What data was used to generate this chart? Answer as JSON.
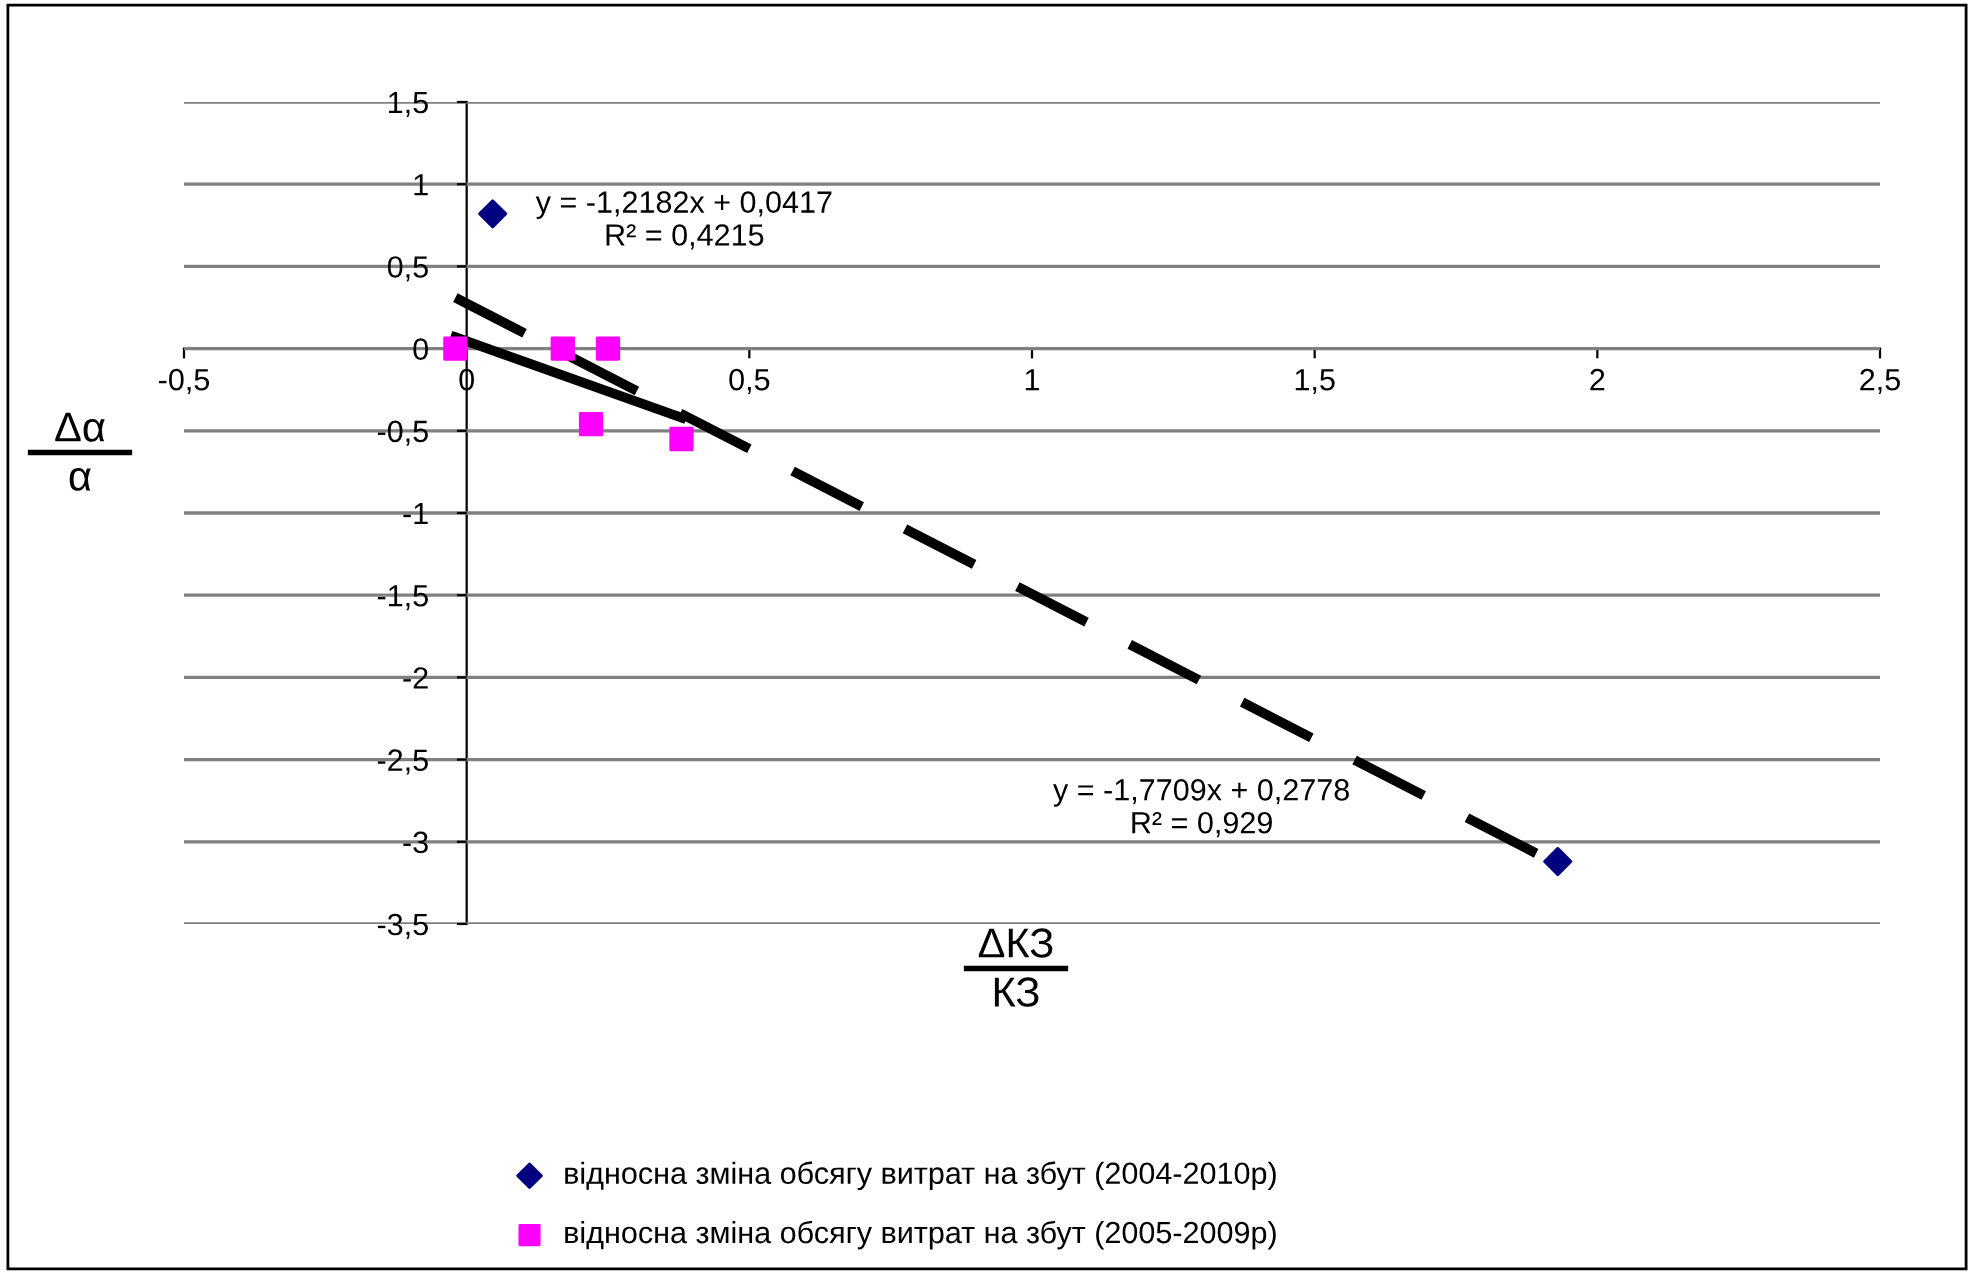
{
  "chart_data": {
    "type": "scatter",
    "xlabel": "ΔКЗ\nКЗ",
    "ylabel": "Δα\nα",
    "series": [
      {
        "name": "відносна зміна обсягу витрат на збут (2004-2010р)",
        "color": "#000080",
        "marker": "diamond",
        "x": [
          0.046,
          1.93
        ],
        "values": [
          0.82,
          -3.12
        ]
      },
      {
        "name": "відносна зміна обсягу витрат на збут (2005-2009р)",
        "color": "#ff00ff",
        "marker": "square",
        "x": [
          -0.02,
          0.17,
          0.25,
          0.22,
          0.38
        ],
        "values": [
          0.0,
          0.0,
          0.0,
          -0.46,
          -0.55
        ]
      },
      {
        "type": "line",
        "color": "#000000",
        "line_style": "dashed",
        "marker": "none",
        "x": [
          -0.02,
          1.92
        ],
        "values": [
          0.31,
          -3.12
        ]
      },
      {
        "type": "line",
        "color": "#000000",
        "line_style": "solid",
        "marker": "none",
        "x": [
          -0.02,
          0.38
        ],
        "values": [
          0.07,
          -0.42
        ]
      }
    ],
    "annotations": [
      "y = -1,2182x + 0,0417\nR² = 0,4215",
      "y = -1,7709x + 0,2778\nR² = 0,929"
    ],
    "xlim": [
      -0.5,
      2.5
    ],
    "xticks": [
      {
        "value": -0.5,
        "label": "-0,5"
      },
      0,
      {
        "value": 0.5,
        "label": "0,5"
      },
      1,
      {
        "value": 1.5,
        "label": "1,5"
      },
      2,
      {
        "value": 2.5,
        "label": "2,5"
      }
    ],
    "ylim": [
      -3.5,
      1.5
    ],
    "yticks": [
      {
        "value": -3.5,
        "label": "-3,5"
      },
      -3,
      {
        "value": -2.5,
        "label": "-2,5"
      },
      -2,
      {
        "value": -1.5,
        "label": "-1,5"
      },
      -1,
      {
        "value": -0.5,
        "label": "-0,5"
      },
      0,
      {
        "value": 0.5,
        "label": "0,5"
      },
      1,
      {
        "value": 1.5,
        "label": "1,5"
      }
    ],
    "grid": "y",
    "legend": "bottom"
  }
}
